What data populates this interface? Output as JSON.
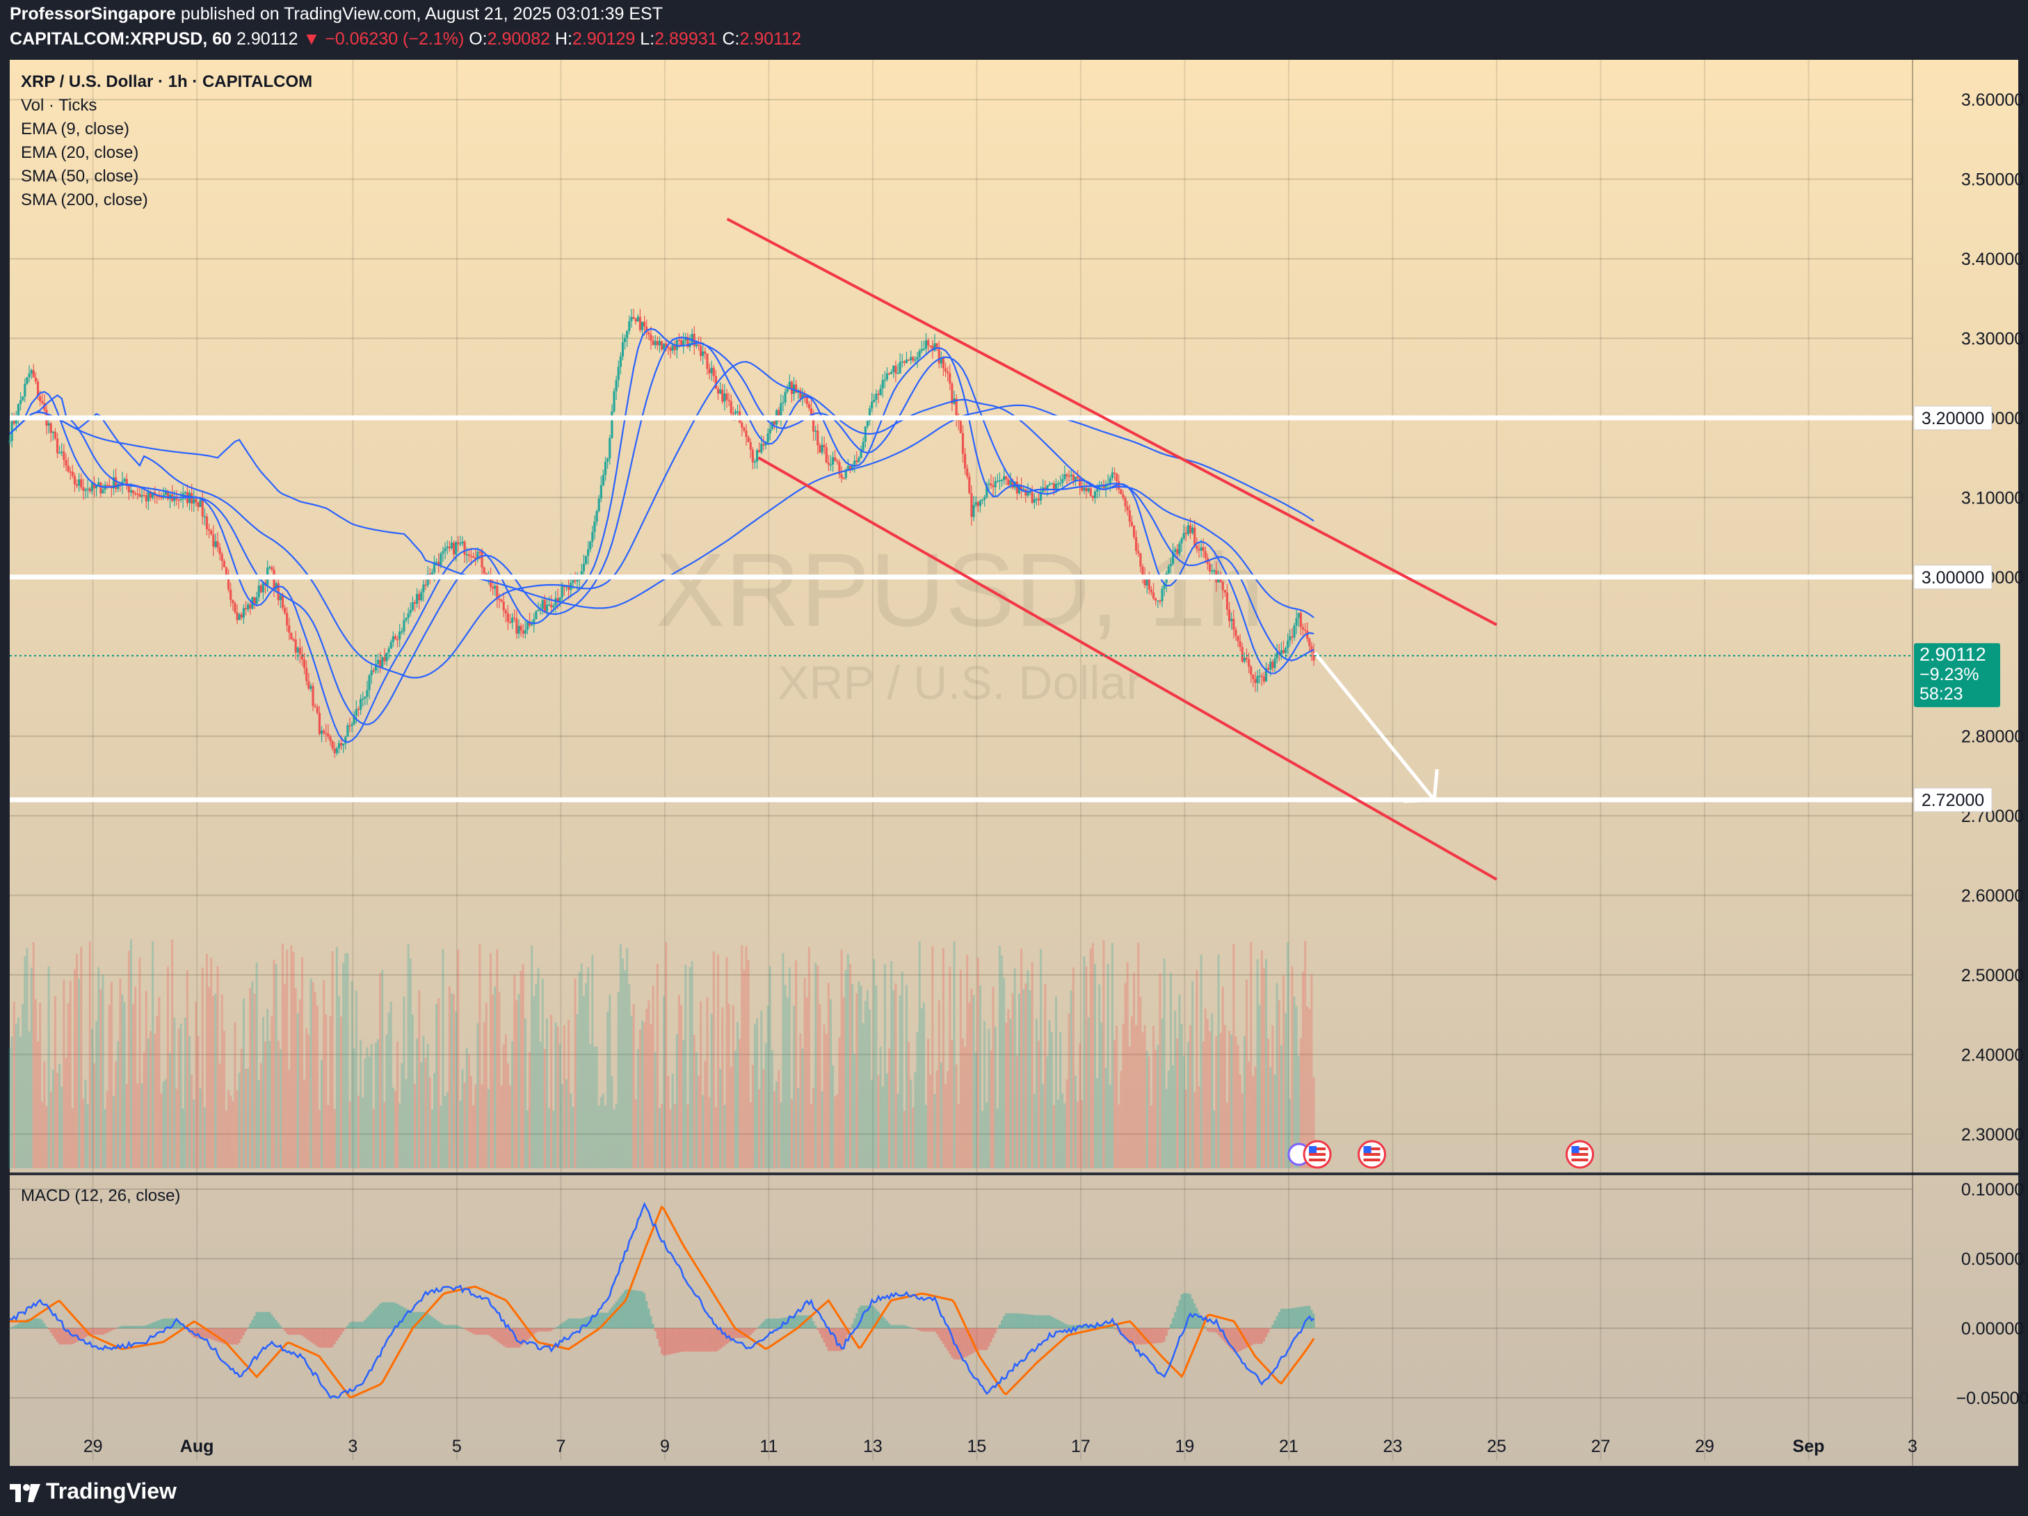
{
  "header": {
    "publisher": "ProfessorSingapore",
    "published_text": "published on TradingView.com, August 21, 2025 03:01:39 EST",
    "symbol": "CAPITALCOM:XRPUSD, 60",
    "last": "2.90112",
    "change": "▼ −0.06230 (−2.1%)",
    "open_label": "O:",
    "open": "2.90082",
    "high_label": "H:",
    "high": "2.90129",
    "low_label": "L:",
    "low": "2.89931",
    "close_label": "C:",
    "close": "2.90112"
  },
  "legend": {
    "title": "XRP / U.S. Dollar · 1h · CAPITALCOM",
    "vol": "Vol · Ticks",
    "ema9": "EMA (9, close)",
    "ema20": "EMA (20, close)",
    "sma50": "SMA (50, close)",
    "sma200": "SMA (200, close)",
    "macd": "MACD (12, 26, close)"
  },
  "watermark": {
    "symbol": "XRPUSD, 1h",
    "name": "XRP / U.S. Dollar"
  },
  "price_badge": {
    "price": "2.90112",
    "pct": "−9.23%",
    "timer": "58:23"
  },
  "footer": {
    "brand": "TradingView"
  },
  "colors": {
    "up": "#26a69a",
    "down": "#ef5350",
    "ma": "#2962ff",
    "channel": "#f23645",
    "macd": "#2962ff",
    "signal": "#ff6d00",
    "badge": "#089981",
    "bg_top": "#fbe3b6",
    "bg_bottom": "#c9bdac"
  },
  "chart_data": {
    "type": "candlestick",
    "title": "XRP / U.S. Dollar · 1h · CAPITALCOM",
    "ylim": [
      2.25,
      3.65
    ],
    "y_ticks": [
      "3.60000",
      "3.50000",
      "3.40000",
      "3.30000",
      "3.20000",
      "3.10000",
      "3.00000",
      "2.80000",
      "2.70000",
      "2.60000",
      "2.50000",
      "2.40000",
      "2.30000"
    ],
    "x_ticks": [
      {
        "label": "29",
        "day": 29
      },
      {
        "label": "Aug",
        "day": 31
      },
      {
        "label": "3",
        "day": 34
      },
      {
        "label": "5",
        "day": 36
      },
      {
        "label": "7",
        "day": 38
      },
      {
        "label": "9",
        "day": 40
      },
      {
        "label": "11",
        "day": 42
      },
      {
        "label": "13",
        "day": 44
      },
      {
        "label": "15",
        "day": 46
      },
      {
        "label": "17",
        "day": 48
      },
      {
        "label": "19",
        "day": 50
      },
      {
        "label": "21",
        "day": 52
      },
      {
        "label": "23",
        "day": 54
      },
      {
        "label": "25",
        "day": 56
      },
      {
        "label": "27",
        "day": 58
      },
      {
        "label": "29",
        "day": 60
      },
      {
        "label": "Sep",
        "day": 62
      },
      {
        "label": "3",
        "day": 64
      }
    ],
    "x_domain": [
      27.4,
      64
    ],
    "price_path": [
      [
        27.4,
        3.18
      ],
      [
        27.8,
        3.26
      ],
      [
        28.2,
        3.18
      ],
      [
        28.6,
        3.12
      ],
      [
        29.0,
        3.11
      ],
      [
        29.5,
        3.12
      ],
      [
        30.0,
        3.1
      ],
      [
        30.5,
        3.1
      ],
      [
        31.0,
        3.1
      ],
      [
        31.4,
        3.03
      ],
      [
        31.8,
        2.95
      ],
      [
        32.1,
        2.97
      ],
      [
        32.4,
        3.01
      ],
      [
        32.8,
        2.93
      ],
      [
        33.1,
        2.88
      ],
      [
        33.4,
        2.8
      ],
      [
        33.7,
        2.78
      ],
      [
        34.0,
        2.82
      ],
      [
        34.4,
        2.88
      ],
      [
        34.8,
        2.92
      ],
      [
        35.2,
        2.97
      ],
      [
        35.6,
        3.02
      ],
      [
        36.0,
        3.04
      ],
      [
        36.4,
        3.03
      ],
      [
        36.8,
        2.97
      ],
      [
        37.2,
        2.93
      ],
      [
        37.6,
        2.96
      ],
      [
        38.0,
        2.98
      ],
      [
        38.3,
        2.99
      ],
      [
        38.6,
        3.05
      ],
      [
        38.9,
        3.15
      ],
      [
        39.1,
        3.27
      ],
      [
        39.4,
        3.33
      ],
      [
        39.8,
        3.29
      ],
      [
        40.2,
        3.29
      ],
      [
        40.6,
        3.3
      ],
      [
        41.0,
        3.24
      ],
      [
        41.4,
        3.2
      ],
      [
        41.7,
        3.15
      ],
      [
        42.0,
        3.18
      ],
      [
        42.4,
        3.24
      ],
      [
        42.7,
        3.22
      ],
      [
        43.0,
        3.16
      ],
      [
        43.4,
        3.13
      ],
      [
        43.7,
        3.15
      ],
      [
        44.0,
        3.22
      ],
      [
        44.4,
        3.26
      ],
      [
        44.8,
        3.28
      ],
      [
        45.1,
        3.3
      ],
      [
        45.4,
        3.26
      ],
      [
        45.7,
        3.18
      ],
      [
        45.9,
        3.08
      ],
      [
        46.2,
        3.11
      ],
      [
        46.6,
        3.12
      ],
      [
        47.0,
        3.1
      ],
      [
        47.4,
        3.11
      ],
      [
        47.8,
        3.13
      ],
      [
        48.2,
        3.1
      ],
      [
        48.6,
        3.13
      ],
      [
        48.9,
        3.09
      ],
      [
        49.2,
        3.0
      ],
      [
        49.5,
        2.97
      ],
      [
        49.8,
        3.03
      ],
      [
        50.1,
        3.06
      ],
      [
        50.4,
        3.02
      ],
      [
        50.7,
        2.99
      ],
      [
        51.0,
        2.92
      ],
      [
        51.3,
        2.87
      ],
      [
        51.6,
        2.88
      ],
      [
        51.9,
        2.91
      ],
      [
        52.2,
        2.95
      ],
      [
        52.5,
        2.9
      ]
    ],
    "moving_averages": [
      {
        "name": "EMA (9, close)",
        "lag": 0.25
      },
      {
        "name": "EMA (20, close)",
        "lag": 0.55
      },
      {
        "name": "SMA (50, close)",
        "lag": 1.3
      },
      {
        "name": "SMA (200, close)",
        "lag": 4.0
      }
    ],
    "horizontal_levels": [
      3.2,
      3.0,
      2.72
    ],
    "channel_upper": [
      [
        41.2,
        3.45
      ],
      [
        56.0,
        2.94
      ]
    ],
    "channel_lower": [
      [
        41.8,
        3.15
      ],
      [
        56.0,
        2.62
      ]
    ],
    "projection_arrow": [
      [
        52.5,
        2.905
      ],
      [
        54.8,
        2.72
      ]
    ],
    "macd": {
      "ylim": [
        -0.075,
        0.11
      ],
      "y_ticks": [
        "0.10000",
        "0.05000",
        "0.00000",
        "−0.05000"
      ],
      "macd_path": [
        [
          27.4,
          0.005
        ],
        [
          28.0,
          0.02
        ],
        [
          28.6,
          -0.005
        ],
        [
          29.2,
          -0.015
        ],
        [
          30.0,
          -0.01
        ],
        [
          30.6,
          0.005
        ],
        [
          31.2,
          -0.01
        ],
        [
          31.8,
          -0.035
        ],
        [
          32.4,
          -0.01
        ],
        [
          33.0,
          -0.02
        ],
        [
          33.6,
          -0.05
        ],
        [
          34.2,
          -0.04
        ],
        [
          34.8,
          0.0
        ],
        [
          35.4,
          0.025
        ],
        [
          36.0,
          0.03
        ],
        [
          36.6,
          0.02
        ],
        [
          37.2,
          -0.01
        ],
        [
          37.8,
          -0.015
        ],
        [
          38.4,
          0.0
        ],
        [
          38.9,
          0.02
        ],
        [
          39.3,
          0.06
        ],
        [
          39.6,
          0.088
        ],
        [
          40.0,
          0.06
        ],
        [
          40.5,
          0.03
        ],
        [
          41.0,
          0.0
        ],
        [
          41.6,
          -0.015
        ],
        [
          42.2,
          0.0
        ],
        [
          42.8,
          0.02
        ],
        [
          43.4,
          -0.015
        ],
        [
          44.0,
          0.02
        ],
        [
          44.6,
          0.025
        ],
        [
          45.2,
          0.02
        ],
        [
          45.7,
          -0.02
        ],
        [
          46.2,
          -0.048
        ],
        [
          46.8,
          -0.025
        ],
        [
          47.4,
          -0.005
        ],
        [
          48.0,
          0.0
        ],
        [
          48.6,
          0.005
        ],
        [
          49.2,
          -0.02
        ],
        [
          49.6,
          -0.035
        ],
        [
          50.1,
          0.01
        ],
        [
          50.6,
          0.005
        ],
        [
          51.0,
          -0.02
        ],
        [
          51.5,
          -0.04
        ],
        [
          52.0,
          -0.015
        ],
        [
          52.4,
          0.008
        ],
        [
          52.7,
          0.0
        ]
      ],
      "signal_lag": 0.35
    }
  }
}
